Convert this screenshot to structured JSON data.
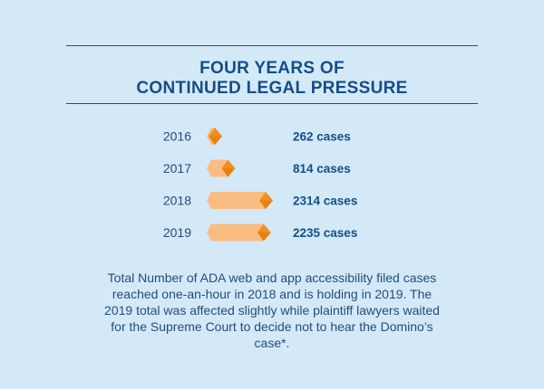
{
  "header": {
    "title_line1": "FOUR YEARS OF",
    "title_line2": "CONTINUED LEGAL PRESSURE"
  },
  "chart_data": {
    "type": "bar",
    "orientation": "horizontal",
    "categories": [
      "2016",
      "2017",
      "2018",
      "2019"
    ],
    "values": [
      262,
      814,
      2314,
      2235
    ],
    "value_labels": [
      "262 cases",
      "814 cases",
      "2314 cases",
      "2235 cases"
    ],
    "title": "FOUR YEARS OF CONTINUED LEGAL PRESSURE",
    "xlabel": "",
    "ylabel": "",
    "grid": false,
    "legend": "none",
    "colors": {
      "bar_body": "#f9bd82",
      "bar_tip": "#f28f22",
      "bar_tip_dark": "#e7820f",
      "year_text": "#1f4e79",
      "value_text": "#154e86"
    }
  },
  "caption": "Total Number of ADA web and app accessibility filed cases reached one-an-hour in 2018 and is holding in 2019. The 2019 total was affected slightly while plaintiff lawyers waited for the Supreme Court to decide not to hear the Domino’s case*.",
  "colors": {
    "background": "#d4e9f8",
    "heading": "#154e86",
    "rule": "#1f4e79"
  }
}
